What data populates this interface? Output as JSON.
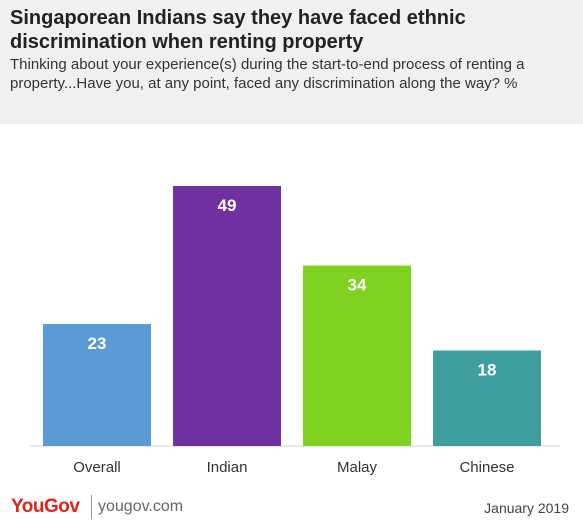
{
  "header": {
    "title": "Singaporean Indians say they have faced ethnic discrimination when renting property",
    "subtitle": "Thinking about your experience(s) during the start-to-end process of renting a property...Have you, at any point, faced any discrimination along the way? %"
  },
  "chart_data": {
    "type": "bar",
    "categories": [
      "Overall",
      "Indian",
      "Malay",
      "Chinese"
    ],
    "values": [
      23,
      49,
      34,
      18
    ],
    "colors": [
      "#5b9bd5",
      "#7030a0",
      "#7fd320",
      "#3f9f9f"
    ],
    "ylim": [
      0,
      49
    ],
    "grid": false,
    "legend": "none"
  },
  "footer": {
    "logo": "YouGov",
    "site": "yougov.com",
    "date": "January 2019"
  }
}
